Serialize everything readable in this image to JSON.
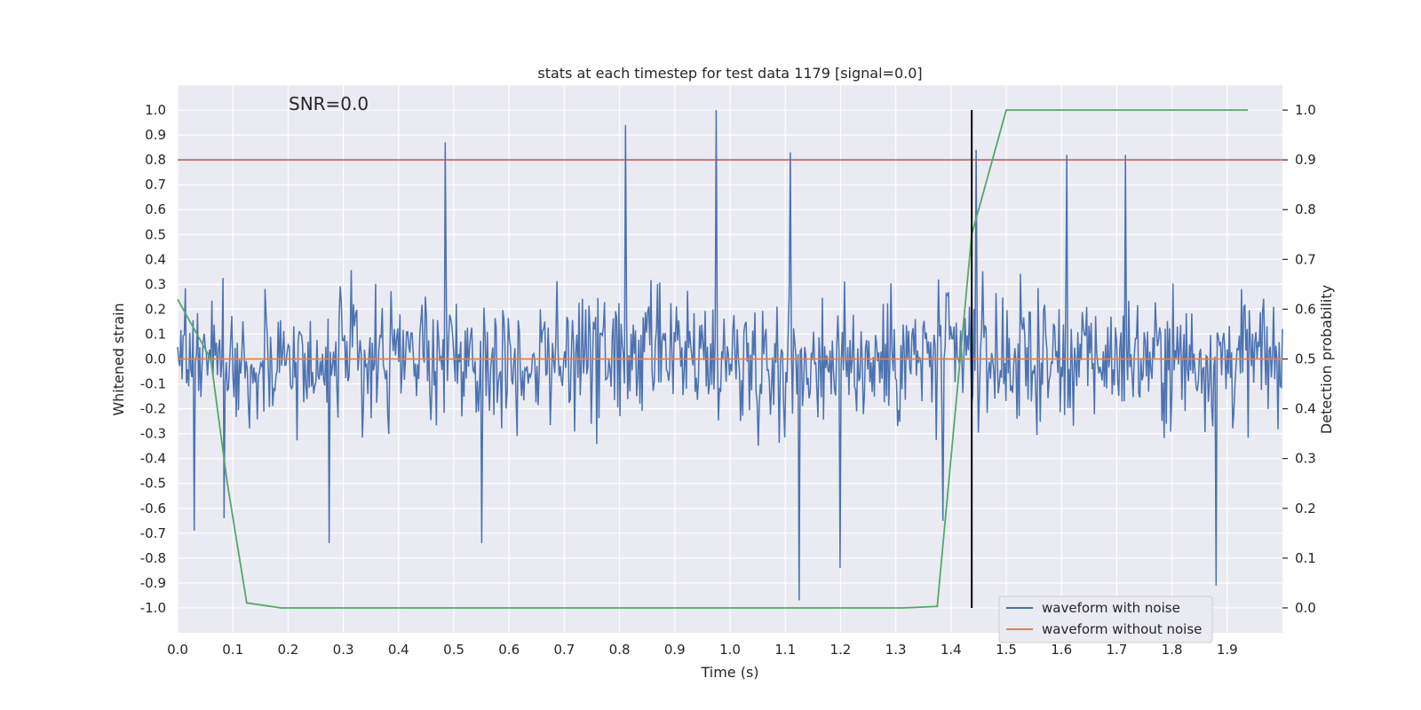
{
  "chart_data": {
    "type": "line",
    "title": "stats at each timestep for test data 1179 [signal=0.0]",
    "xlabel": "Time (s)",
    "ylabel": "Whitened strain",
    "y2label": "Detection probability",
    "annotation": "SNR=0.0",
    "xlim": [
      0.0,
      2.0
    ],
    "ylim": [
      -1.1,
      1.1
    ],
    "y2lim": [
      -0.05,
      1.05
    ],
    "xticks": [
      0.0,
      0.1,
      0.2,
      0.3,
      0.4,
      0.5,
      0.6,
      0.7,
      0.8,
      0.9,
      1.0,
      1.1,
      1.2,
      1.3,
      1.4,
      1.5,
      1.6,
      1.7,
      1.8,
      1.9
    ],
    "yticks": [
      1.0,
      0.9,
      0.8,
      0.7,
      0.6,
      0.5,
      0.4,
      0.3,
      0.2,
      0.1,
      0.0,
      -0.1,
      -0.2,
      -0.3,
      -0.4,
      -0.5,
      -0.6,
      -0.7,
      -0.8,
      -0.9,
      -1.0
    ],
    "y2ticks": [
      1.0,
      0.9,
      0.8,
      0.7,
      0.6,
      0.5,
      0.4,
      0.3,
      0.2,
      0.1,
      0.0
    ],
    "grid": true,
    "legend_position": "lower-right",
    "series": [
      {
        "name": "waveform with noise",
        "color": "#4c72b0",
        "axis": "left",
        "kind": "noise",
        "x_range": [
          0.0,
          2.0
        ],
        "sample_count": 1000,
        "spikes": [
          {
            "x": 0.485,
            "y": 0.87
          },
          {
            "x": 0.81,
            "y": 0.94
          },
          {
            "x": 0.975,
            "y": 1.0
          },
          {
            "x": 1.11,
            "y": 0.83
          },
          {
            "x": 1.445,
            "y": 0.84
          },
          {
            "x": 1.61,
            "y": 0.82
          },
          {
            "x": 1.715,
            "y": 0.82
          },
          {
            "x": 1.125,
            "y": -0.97
          },
          {
            "x": 1.2,
            "y": -0.84
          },
          {
            "x": 1.88,
            "y": -0.91
          },
          {
            "x": 0.275,
            "y": -0.74
          },
          {
            "x": 0.55,
            "y": -0.74
          },
          {
            "x": 1.385,
            "y": -0.65
          },
          {
            "x": 0.03,
            "y": -0.69
          },
          {
            "x": 0.085,
            "y": -0.64
          }
        ]
      },
      {
        "name": "waveform without noise",
        "color": "#dd8452",
        "axis": "left",
        "x": [
          0.0,
          2.0
        ],
        "y": [
          0.0,
          0.0
        ]
      },
      {
        "name": "detection probability",
        "color": "#55a868",
        "axis": "right",
        "x": [
          0.0,
          0.06,
          0.09,
          0.125,
          0.1875,
          0.25,
          0.5,
          0.75,
          1.0,
          1.25,
          1.3125,
          1.375,
          1.4375,
          1.5,
          1.75,
          1.9375
        ],
        "y": [
          0.62,
          0.5,
          0.25,
          0.01,
          0.0,
          0.0,
          0.0,
          0.0,
          0.0,
          0.0,
          0.0,
          0.003,
          0.75,
          1.0,
          1.0,
          1.0
        ]
      }
    ],
    "threshold_line": {
      "axis": "right",
      "y": 0.9,
      "color": "#c44e52"
    },
    "marker_line": {
      "x": 1.4375,
      "color": "#000000"
    }
  }
}
